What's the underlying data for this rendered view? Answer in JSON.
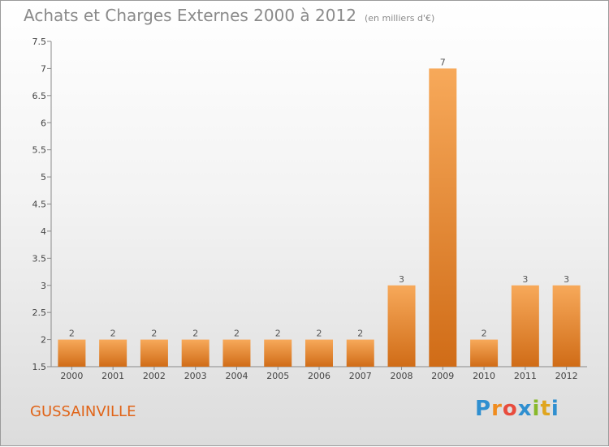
{
  "header": {
    "title": "Achats et Charges Externes 2000 à 2012",
    "unit": "(en milliers d'€)"
  },
  "footer": {
    "place": "GUSSAINVILLE",
    "logo_letters": [
      "P",
      "r",
      "o",
      "x",
      "i",
      "t",
      "i"
    ]
  },
  "colors": {
    "bar_top": "#f7a95a",
    "bar_bottom": "#d06c17",
    "title": "#8a8a8a",
    "place": "#e06418"
  },
  "chart_data": {
    "type": "bar",
    "title": "Achats et Charges Externes 2000 à 2012",
    "xlabel": "",
    "ylabel": "",
    "categories": [
      "2000",
      "2001",
      "2002",
      "2003",
      "2004",
      "2005",
      "2006",
      "2007",
      "2008",
      "2009",
      "2010",
      "2011",
      "2012"
    ],
    "values": [
      2,
      2,
      2,
      2,
      2,
      2,
      2,
      2,
      3,
      7,
      2,
      3,
      3
    ],
    "data_labels": [
      "2",
      "2",
      "2",
      "2",
      "2",
      "2",
      "2",
      "2",
      "3",
      "7",
      "2",
      "3",
      "3"
    ],
    "ylim": [
      1.5,
      7.5
    ],
    "yticks": [
      "1.5",
      "2",
      "2.5",
      "3",
      "3.5",
      "4",
      "4.5",
      "5",
      "5.5",
      "6",
      "6.5",
      "7",
      "7.5"
    ],
    "grid": false,
    "legend": "none"
  }
}
